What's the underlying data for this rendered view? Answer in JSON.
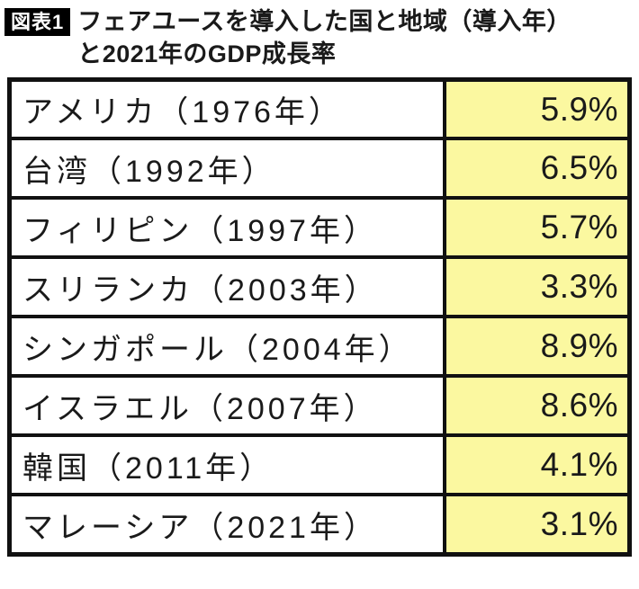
{
  "figure": {
    "badge": "図表1",
    "title_lines": [
      "フェアユースを導入した国と地域（導入年）",
      "と2021年のGDP成長率"
    ]
  },
  "table": {
    "rows": [
      {
        "country": "アメリカ（1976年）",
        "gdp": "5.9%"
      },
      {
        "country": "台湾（1992年）",
        "gdp": "6.5%"
      },
      {
        "country": "フィリピン（1997年）",
        "gdp": "5.7%"
      },
      {
        "country": "スリランカ（2003年）",
        "gdp": "3.3%"
      },
      {
        "country": "シンガポール（2004年）",
        "gdp": "8.9%"
      },
      {
        "country": "イスラエル（2007年）",
        "gdp": "8.6%"
      },
      {
        "country": "韓国（2011年）",
        "gdp": "4.1%"
      },
      {
        "country": "マレーシア（2021年）",
        "gdp": "3.1%"
      }
    ]
  },
  "colors": {
    "value_cell_bg": "#FBF8A0",
    "border": "#111111",
    "badge_bg": "#000000",
    "badge_text": "#FFFFFF"
  },
  "chart_data": {
    "type": "table",
    "title": "フェアユースを導入した国と地域（導入年）と2021年のGDP成長率",
    "columns": [
      "国と地域（導入年）",
      "2021年のGDP成長率"
    ],
    "entries": [
      {
        "country": "アメリカ",
        "adopted_year": 1976,
        "gdp_growth_2021_pct": 5.9
      },
      {
        "country": "台湾",
        "adopted_year": 1992,
        "gdp_growth_2021_pct": 6.5
      },
      {
        "country": "フィリピン",
        "adopted_year": 1997,
        "gdp_growth_2021_pct": 5.7
      },
      {
        "country": "スリランカ",
        "adopted_year": 2003,
        "gdp_growth_2021_pct": 3.3
      },
      {
        "country": "シンガポール",
        "adopted_year": 2004,
        "gdp_growth_2021_pct": 8.9
      },
      {
        "country": "イスラエル",
        "adopted_year": 2007,
        "gdp_growth_2021_pct": 8.6
      },
      {
        "country": "韓国",
        "adopted_year": 2011,
        "gdp_growth_2021_pct": 4.1
      },
      {
        "country": "マレーシア",
        "adopted_year": 2021,
        "gdp_growth_2021_pct": 3.1
      }
    ],
    "layout": {
      "value_column_highlight": "#FBF8A0",
      "grid": true,
      "legend": "none"
    }
  }
}
